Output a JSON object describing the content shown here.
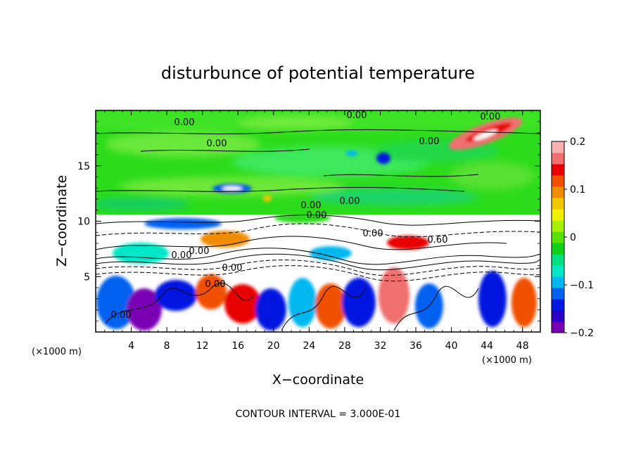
{
  "chart_data": {
    "type": "heatmap",
    "title": "disturbunce of potential temperature",
    "xlabel": "X−coordinate",
    "ylabel": "Z−coordinate",
    "x_unit": "(×1000 m)",
    "z_unit": "(×1000 m)",
    "xlim": [
      0,
      50
    ],
    "ylim": [
      0,
      20
    ],
    "x_ticks": [
      "4",
      "8",
      "12",
      "16",
      "20",
      "24",
      "28",
      "32",
      "36",
      "40",
      "44",
      "48"
    ],
    "y_ticks": [
      "5",
      "10",
      "15"
    ],
    "colorbar": {
      "range": [
        -0.2,
        0.2
      ],
      "tick_labels": [
        "0.2",
        "0.1",
        "0",
        "−0.1",
        "−0.2"
      ],
      "colors": [
        "#7a00b4",
        "#2a00c8",
        "#0018e0",
        "#0060f0",
        "#00b8f0",
        "#00e8c8",
        "#00e080",
        "#10d018",
        "#58e000",
        "#a8f000",
        "#f0f000",
        "#f0c800",
        "#f08c00",
        "#f05000",
        "#e80000",
        "#f07070",
        "#f8b0b0"
      ]
    },
    "contour_labels": [
      "0.00",
      "0.00",
      "0.00",
      "0.00",
      "0.00",
      "0.00",
      "0.00",
      "0.00",
      "0.00",
      "0.00",
      "0.00",
      "0.00",
      "0.60",
      "0.00",
      "0.00"
    ],
    "contour_interval_label": "CONTOUR INTERVAL = 3.000E-01"
  }
}
